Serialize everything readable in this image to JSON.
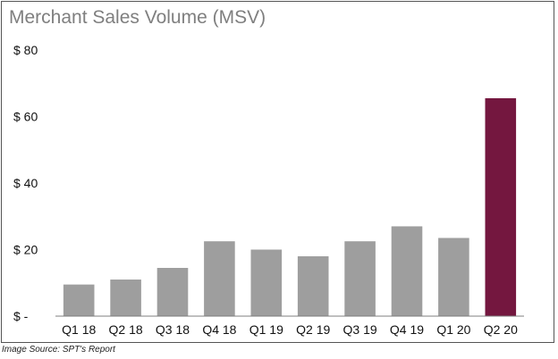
{
  "chart_data": {
    "type": "bar",
    "title": "Merchant Sales Volume (MSV)",
    "categories": [
      "Q1 18",
      "Q2 18",
      "Q3 18",
      "Q4 18",
      "Q1 19",
      "Q2 19",
      "Q3 19",
      "Q4 19",
      "Q1 20",
      "Q2 20"
    ],
    "values": [
      9.5,
      11,
      14.5,
      22.5,
      20,
      18,
      22.5,
      27,
      23.5,
      65.5
    ],
    "ylim": [
      0,
      80
    ],
    "yticks": [
      0,
      20,
      40,
      60,
      80
    ],
    "ytick_labels": [
      "$ -",
      "$ 20",
      "$ 40",
      "$ 60",
      "$ 80"
    ],
    "xlabel": "",
    "ylabel": "",
    "grid": false,
    "colors": {
      "default": "#9e9e9e",
      "highlight": "#74173f",
      "axis": "#7f7f7f"
    },
    "highlight_index": 9
  },
  "source_note": "Image Source: SPT's Report"
}
